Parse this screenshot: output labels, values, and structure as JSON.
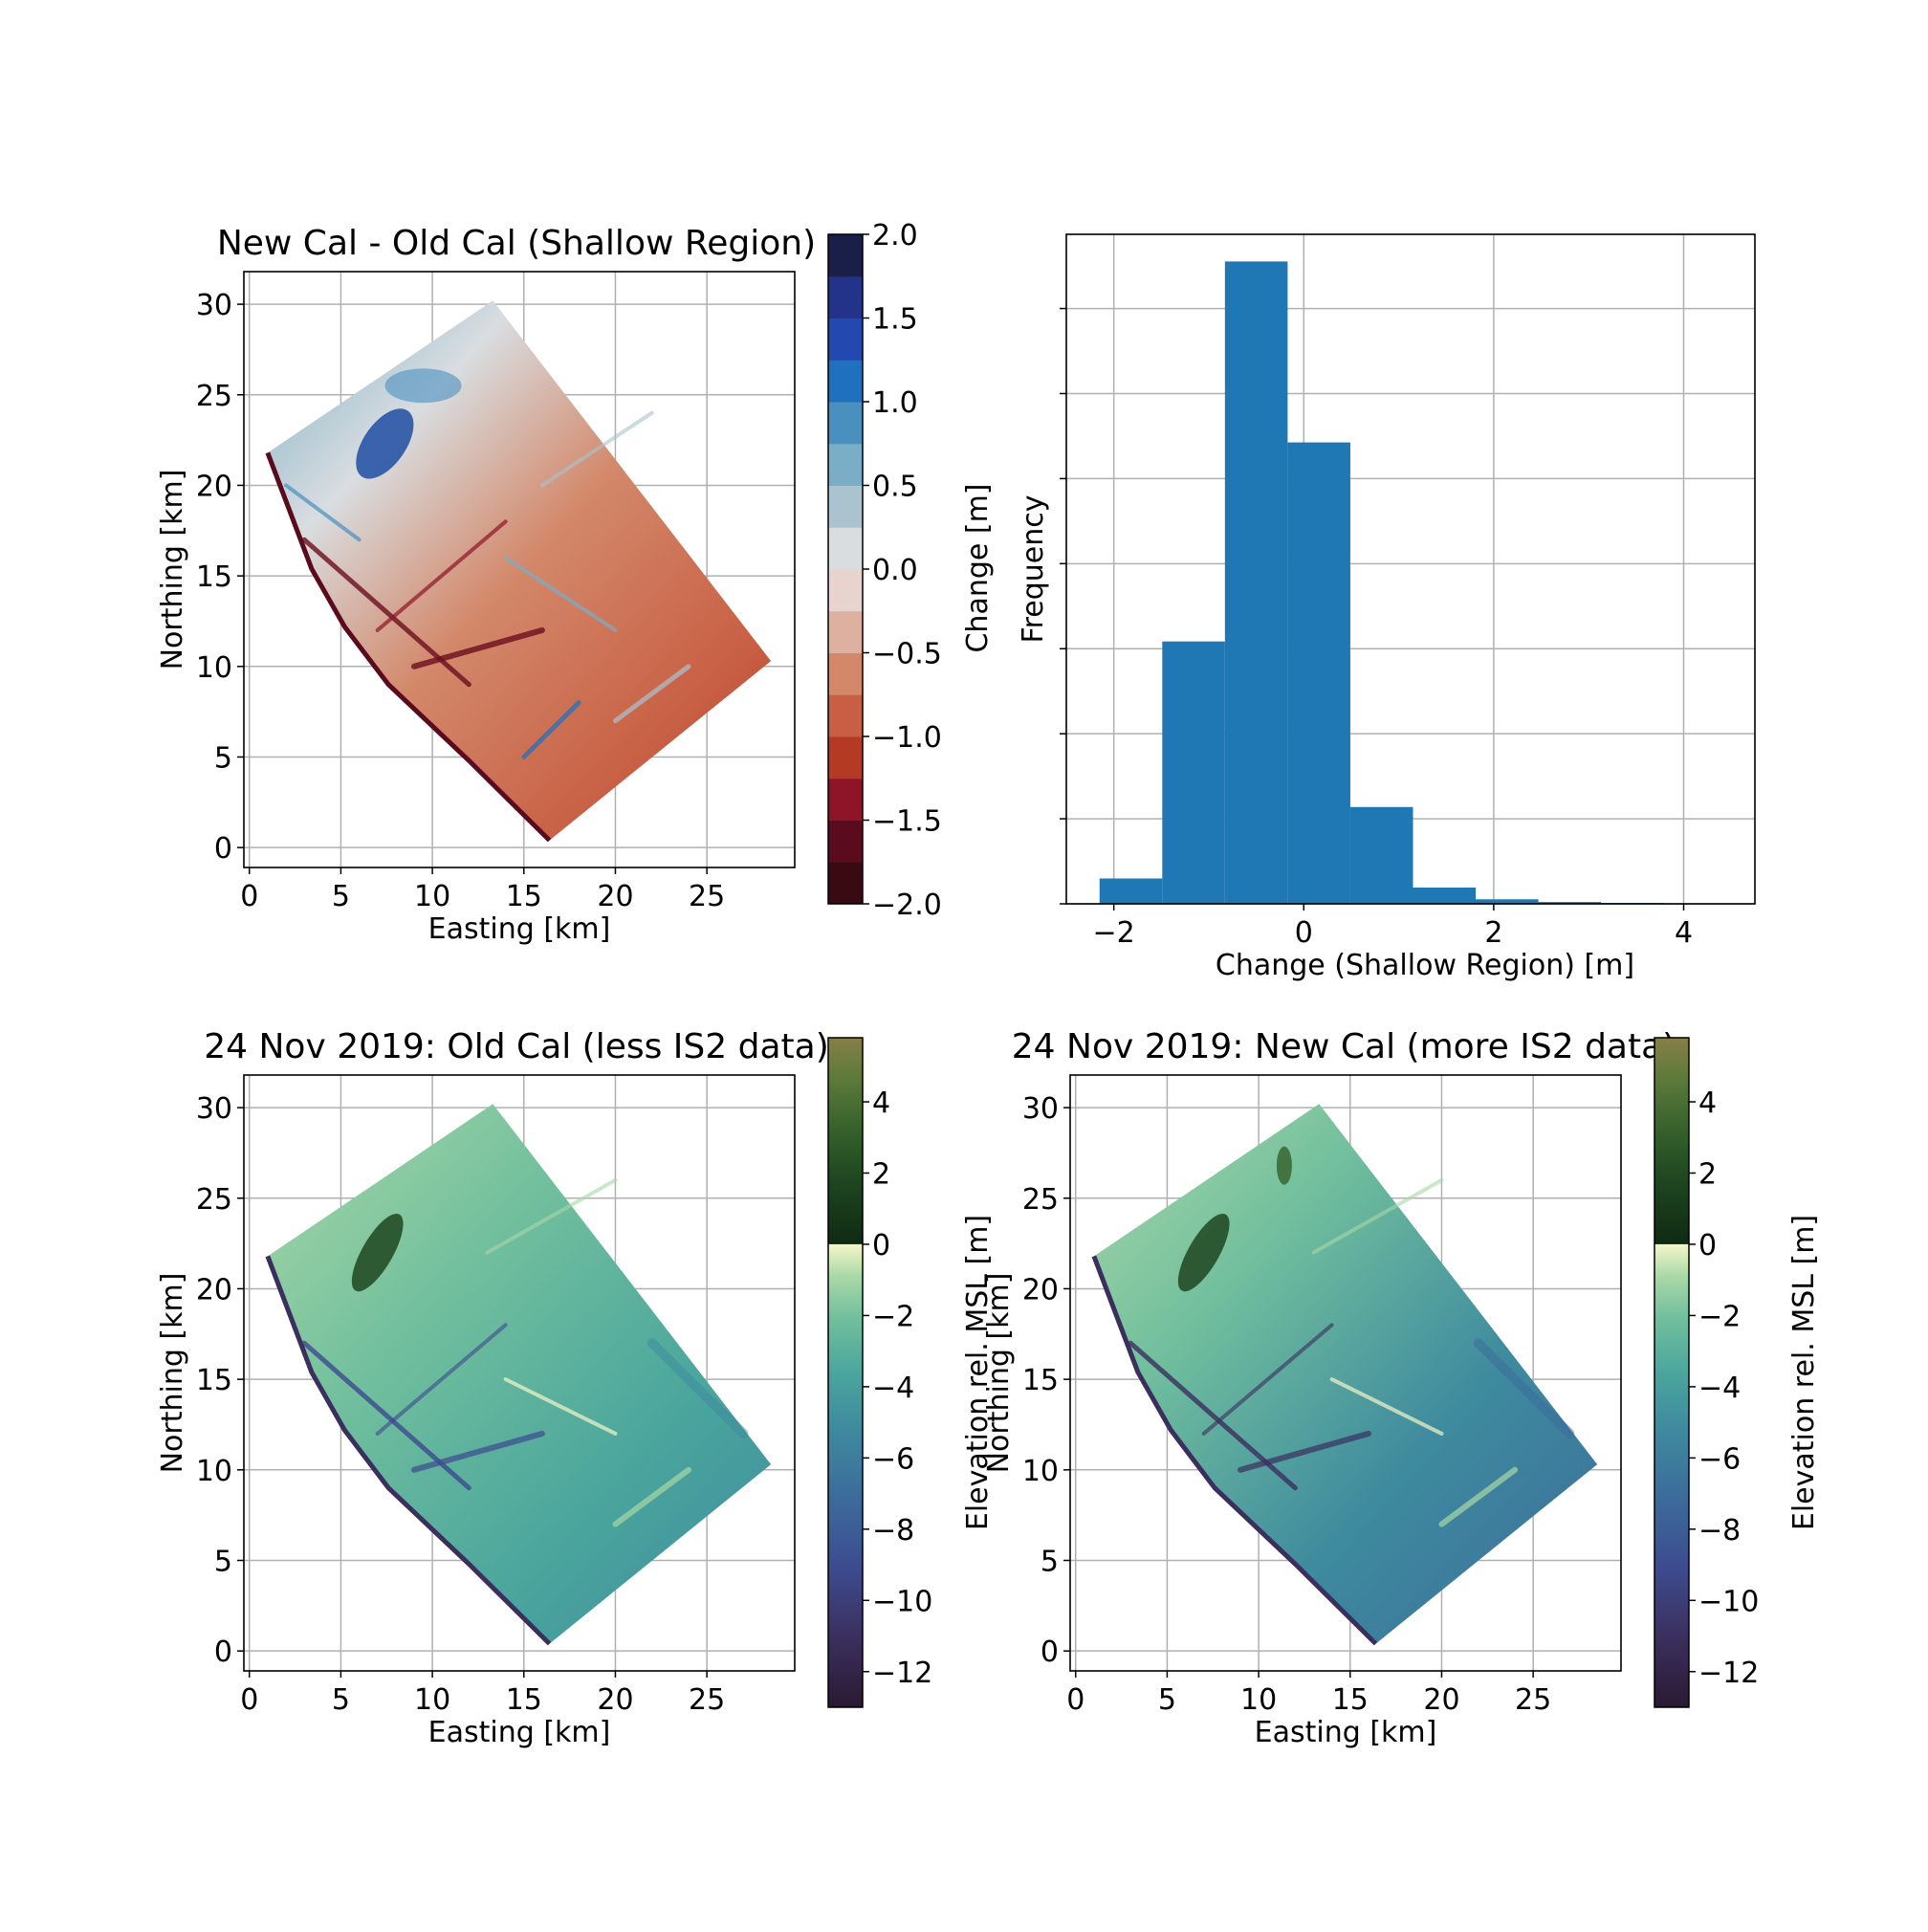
{
  "colors": {
    "hist_bar": "#1f77b4",
    "diverging": [
      "#3a0a12",
      "#5a0b1d",
      "#8e1428",
      "#b43a24",
      "#c85f44",
      "#d3886a",
      "#ddb0a0",
      "#e8d4cf",
      "#d9dde0",
      "#abc3cf",
      "#7aaec7",
      "#4a90bf",
      "#1f70bf",
      "#2348b0",
      "#24338a",
      "#1a1f4a"
    ],
    "topo_negative": [
      "#2a1a33",
      "#3b2f5e",
      "#3d4b8f",
      "#3c6b9c",
      "#3e8a9e",
      "#4aa59d",
      "#71bf9d",
      "#a9d8a7",
      "#f4f6c8"
    ],
    "topo_positive": [
      "#0f2a12",
      "#1e4520",
      "#35602b",
      "#5c7a3a",
      "#877f47"
    ]
  },
  "chart_data": [
    {
      "type": "heatmap",
      "title": "New Cal - Old Cal (Shallow Region)",
      "xlabel": "Easting [km]",
      "ylabel": "Northing [km]",
      "xlim": [
        -0.3,
        29.8
      ],
      "ylim": [
        -1.1,
        31.8
      ],
      "xticks": [
        "0",
        "5",
        "10",
        "15",
        "20",
        "25"
      ],
      "yticks": [
        "0",
        "5",
        "10",
        "15",
        "20",
        "25",
        "30"
      ],
      "grid": true,
      "colorbar": {
        "label": "Change [m]",
        "range": [
          -2.0,
          2.0
        ],
        "levels": 16,
        "ticks": [
          "2.0",
          "1.5",
          "1.0",
          "0.5",
          "0.0",
          "−0.5",
          "−1.0",
          "−1.5",
          "−2.0"
        ],
        "colormap": "diverging red-blue"
      },
      "region_polygon": [
        [
          1.0,
          21.8
        ],
        [
          13.3,
          30.2
        ],
        [
          28.5,
          10.3
        ],
        [
          16.4,
          0.4
        ],
        [
          12.0,
          4.8
        ],
        [
          7.6,
          9.0
        ],
        [
          5.2,
          12.2
        ],
        [
          3.4,
          15.4
        ]
      ]
    },
    {
      "type": "bar",
      "subtype": "histogram",
      "xlabel": "Change (Shallow Region) [m]",
      "ylabel": "Frequency",
      "xlim": [
        -2.5,
        4.75
      ],
      "xticks": [
        "−2",
        "0",
        "2",
        "4"
      ],
      "yticks_unlabeled": 8,
      "grid": true,
      "bin_edges": [
        -2.15,
        -1.49,
        -0.83,
        -0.17,
        0.49,
        1.15,
        1.81,
        2.47,
        3.13,
        3.79,
        4.45
      ],
      "values": [
        0.028,
        0.29,
        0.71,
        0.51,
        0.107,
        0.018,
        0.005,
        0.002,
        0.001,
        0.0005
      ]
    },
    {
      "type": "heatmap",
      "title": "24 Nov 2019: Old Cal (less IS2 data)",
      "xlabel": "Easting [km]",
      "ylabel": "Northing [km]",
      "xlim": [
        -0.3,
        29.8
      ],
      "ylim": [
        -1.1,
        31.8
      ],
      "xticks": [
        "0",
        "5",
        "10",
        "15",
        "20",
        "25"
      ],
      "yticks": [
        "0",
        "5",
        "10",
        "15",
        "20",
        "25",
        "30"
      ],
      "grid": true,
      "colorbar": {
        "label": "Elevation rel. MSL [m]",
        "range": [
          -13,
          5.8
        ],
        "ticks": [
          "4",
          "2",
          "0",
          "−2",
          "−4",
          "−6",
          "−8",
          "−10",
          "−12"
        ],
        "colormap": "topographic"
      },
      "region_polygon": [
        [
          1.0,
          21.8
        ],
        [
          13.3,
          30.2
        ],
        [
          28.5,
          10.3
        ],
        [
          16.4,
          0.4
        ],
        [
          12.0,
          4.8
        ],
        [
          7.6,
          9.0
        ],
        [
          5.2,
          12.2
        ],
        [
          3.4,
          15.4
        ]
      ]
    },
    {
      "type": "heatmap",
      "title": "24 Nov 2019: New Cal (more IS2 data)",
      "xlabel": "Easting [km]",
      "ylabel": "Northing [km]",
      "xlim": [
        -0.3,
        29.8
      ],
      "ylim": [
        -1.1,
        31.8
      ],
      "xticks": [
        "0",
        "5",
        "10",
        "15",
        "20",
        "25"
      ],
      "yticks": [
        "0",
        "5",
        "10",
        "15",
        "20",
        "25",
        "30"
      ],
      "grid": true,
      "colorbar": {
        "label": "Elevation rel. MSL [m]",
        "range": [
          -13,
          5.8
        ],
        "ticks": [
          "4",
          "2",
          "0",
          "−2",
          "−4",
          "−6",
          "−8",
          "−10",
          "−12"
        ],
        "colormap": "topographic"
      },
      "region_polygon": [
        [
          1.0,
          21.8
        ],
        [
          13.3,
          30.2
        ],
        [
          28.5,
          10.3
        ],
        [
          16.4,
          0.4
        ],
        [
          12.0,
          4.8
        ],
        [
          7.6,
          9.0
        ],
        [
          5.2,
          12.2
        ],
        [
          3.4,
          15.4
        ]
      ]
    }
  ]
}
